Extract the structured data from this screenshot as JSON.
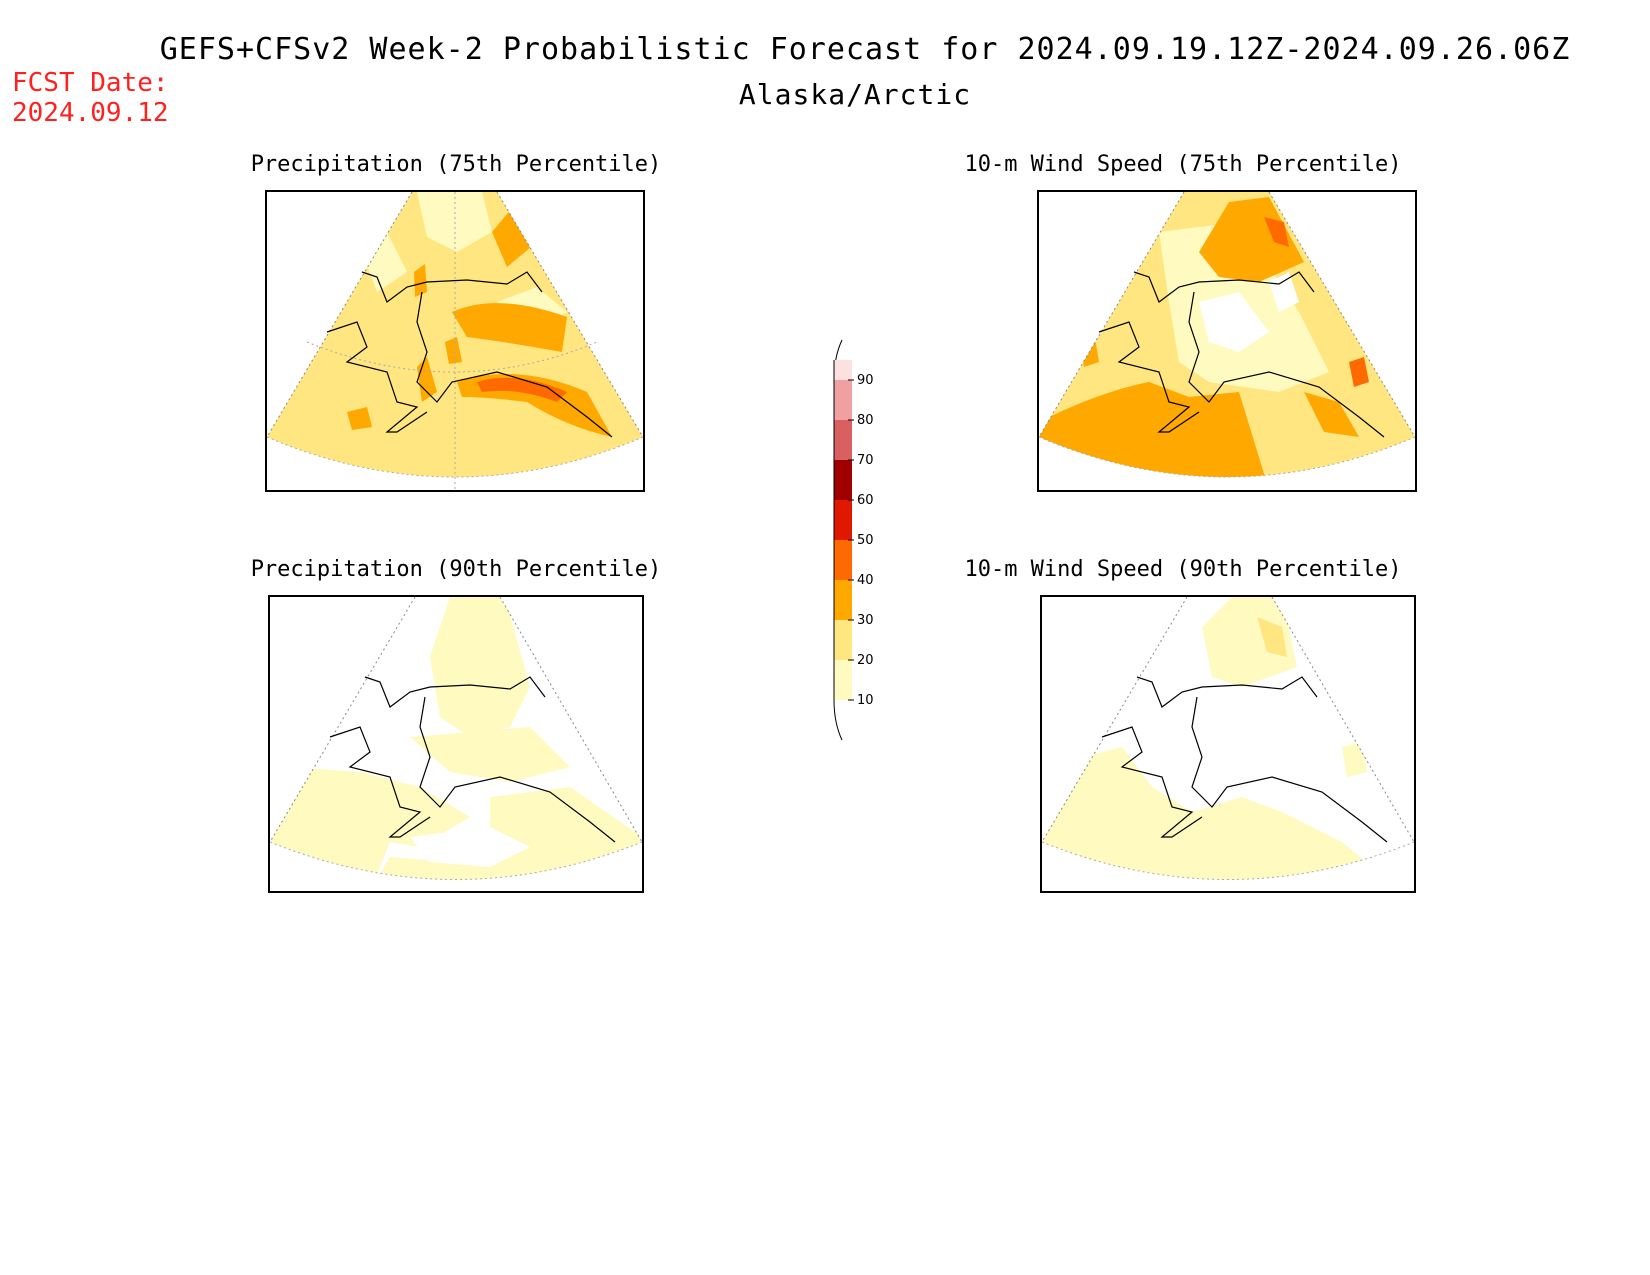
{
  "header": {
    "title": "GEFS+CFSv2 Week-2 Probabilistic Forecast for 2024.09.19.12Z-2024.09.26.06Z",
    "region": "Alaska/Arctic",
    "fcst_label": "FCST Date:",
    "fcst_date": "2024.09.12"
  },
  "panels": [
    {
      "title": "Precipitation (75th Percentile)"
    },
    {
      "title": "10-m Wind Speed (75th Percentile)"
    },
    {
      "title": "Precipitation (90th Percentile)"
    },
    {
      "title": "10-m Wind Speed (90th Percentile)"
    }
  ],
  "colorbar": {
    "labels": [
      "10",
      "20",
      "30",
      "40",
      "50",
      "60",
      "70",
      "80",
      "90"
    ],
    "colors": [
      "#fffac0",
      "#ffe680",
      "#ffa800",
      "#ff6a00",
      "#e01800",
      "#a00000",
      "#d86060",
      "#f0a0a0",
      "#fde0e0"
    ]
  }
}
